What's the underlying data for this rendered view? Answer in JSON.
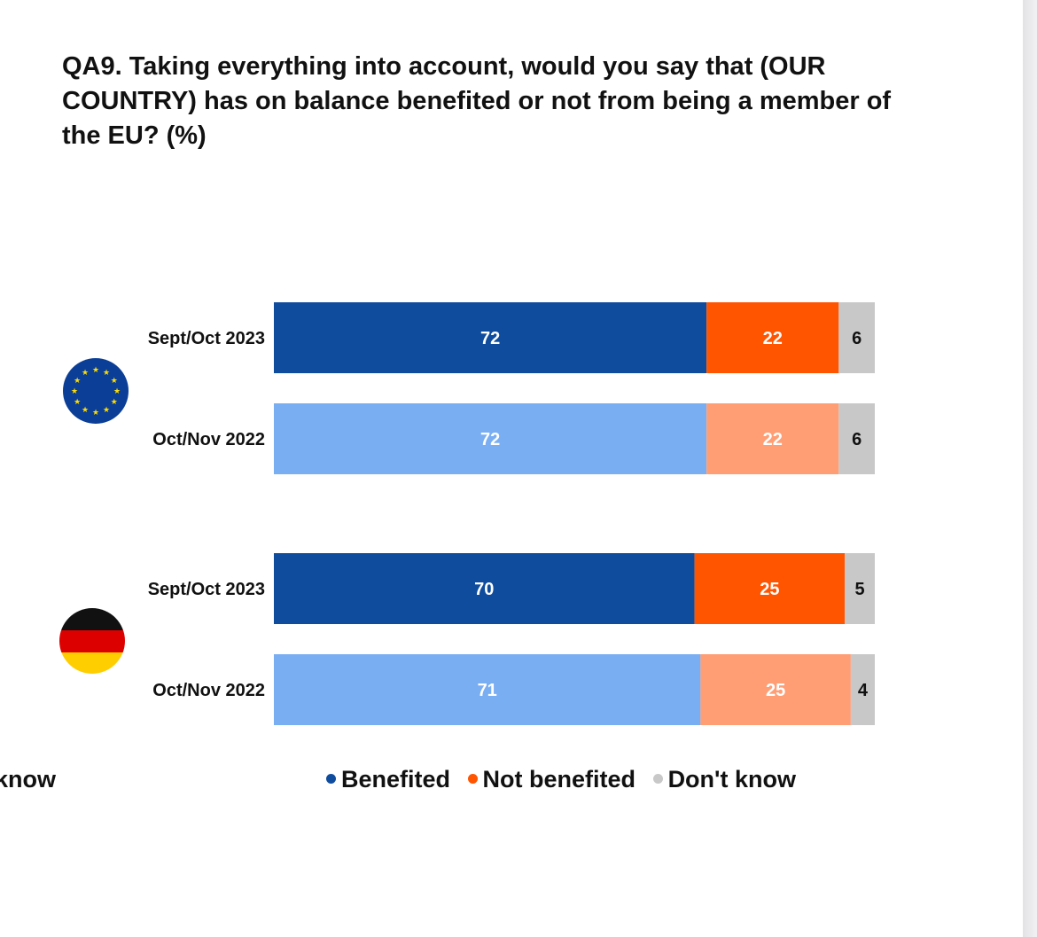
{
  "chart_data": {
    "type": "bar",
    "orientation": "horizontal",
    "stacked": true,
    "title": "QA9. Taking everything into account, would you say that (OUR COUNTRY) has on balance benefited or not from being a member of the EU? (%)",
    "legend_position": "bottom",
    "series": [
      {
        "name": "Benefited",
        "color": "#0f4c9e",
        "color_previous": "#7aaef3"
      },
      {
        "name": "Not benefited",
        "color": "#ff5400",
        "color_previous": "#ff9e74"
      },
      {
        "name": "Don't know",
        "color": "#c8c8c8",
        "color_previous": "#c8c8c8"
      }
    ],
    "groups": [
      {
        "icon": "eu-flag-icon",
        "rows": [
          {
            "label": "Sept/Oct 2023",
            "period": "current",
            "values": [
              72,
              22,
              6
            ]
          },
          {
            "label": "Oct/Nov 2022",
            "period": "previous",
            "values": [
              72,
              22,
              6
            ]
          }
        ]
      },
      {
        "icon": "germany-flag-icon",
        "rows": [
          {
            "label": "Sept/Oct 2023",
            "period": "current",
            "values": [
              70,
              25,
              5
            ]
          },
          {
            "label": "Oct/Nov 2022",
            "period": "previous",
            "values": [
              71,
              25,
              4
            ]
          }
        ]
      }
    ],
    "xlim": [
      0,
      100
    ]
  },
  "legend": {
    "items": [
      {
        "label": "Benefited",
        "color": "#0f4c9e"
      },
      {
        "label": "Not benefited",
        "color": "#ff5400"
      },
      {
        "label": "Don't know",
        "color": "#c8c8c8"
      }
    ],
    "cut_off_left": "know"
  }
}
